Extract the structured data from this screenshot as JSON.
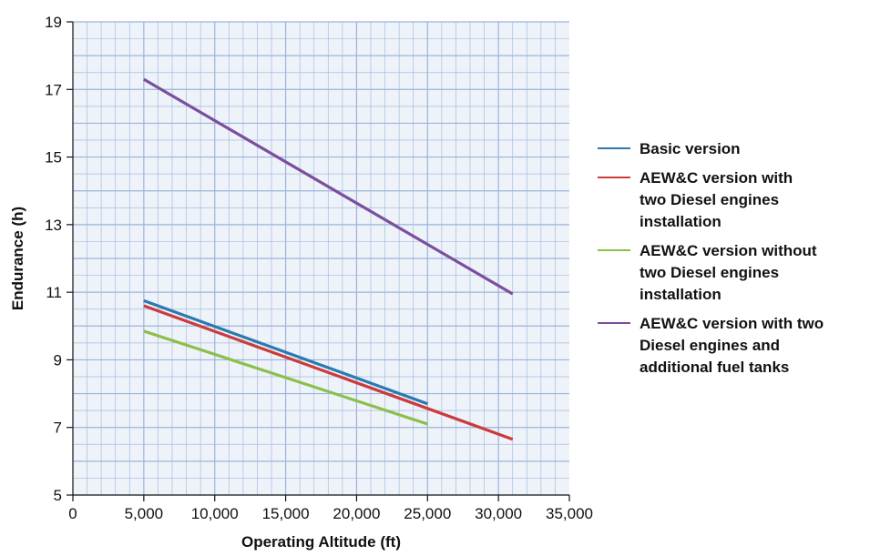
{
  "chart_data": {
    "type": "line",
    "xlabel": "Operating Altitude (ft)",
    "ylabel": "Endurance (h)",
    "xlim": [
      0,
      35000
    ],
    "ylim": [
      5,
      19
    ],
    "x_ticks": [
      0,
      5000,
      10000,
      15000,
      20000,
      25000,
      30000,
      35000
    ],
    "x_tick_labels": [
      "0",
      "5,000",
      "10,000",
      "15,000",
      "20,000",
      "25,000",
      "30,000",
      "35,000"
    ],
    "y_ticks": [
      5,
      7,
      9,
      11,
      13,
      15,
      17,
      19
    ],
    "y_tick_labels": [
      "5",
      "7",
      "9",
      "11",
      "13",
      "15",
      "17",
      "19"
    ],
    "grid": true,
    "legend_position": "right",
    "series": [
      {
        "name": "Basic version",
        "color": "#2a7ab0",
        "x": [
          5000,
          25000
        ],
        "y": [
          10.75,
          7.7
        ]
      },
      {
        "name": "AEW&C version with two Diesel engines installation",
        "color": "#cc3b3b",
        "x": [
          5000,
          31000
        ],
        "y": [
          10.6,
          6.65
        ]
      },
      {
        "name": "AEW&C version without two Diesel engines installation",
        "color": "#8cbf4a",
        "x": [
          5000,
          25000
        ],
        "y": [
          9.85,
          7.1
        ]
      },
      {
        "name": "AEW&C version with two Diesel engines and additional fuel tanks",
        "color": "#7b4f9e",
        "x": [
          5000,
          31000
        ],
        "y": [
          17.3,
          10.95
        ]
      }
    ]
  },
  "legend": {
    "items": [
      "Basic version",
      "AEW&C version with\ntwo Diesel engines\ninstallation",
      "AEW&C version without\ntwo Diesel engines\ninstallation",
      "AEW&C version with two\nDiesel engines and\nadditional fuel tanks"
    ]
  },
  "colors": {
    "plot_background": "#eef2f9",
    "grid_line": "#9bb4dc",
    "axis": "#111111"
  }
}
